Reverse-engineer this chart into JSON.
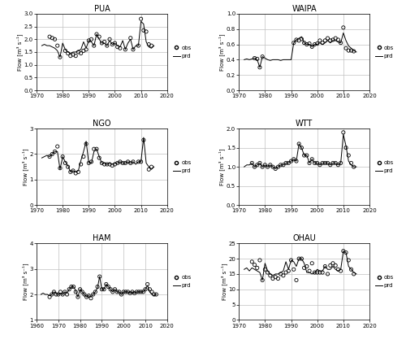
{
  "panels": [
    {
      "title": "PUA",
      "ylim": [
        0,
        3
      ],
      "yticks": [
        0,
        0.5,
        1,
        1.5,
        2,
        2.5,
        3
      ],
      "xlim": [
        1970,
        2020
      ],
      "xticks": [
        1970,
        1980,
        1990,
        2000,
        2010,
        2020
      ],
      "ylabel": "Flow [m³ s⁻¹]",
      "obs_years": [
        1975,
        1976,
        1977,
        1978,
        1979,
        1981,
        1982,
        1983,
        1984,
        1985,
        1986,
        1987,
        1988,
        1989,
        1990,
        1991,
        1992,
        1993,
        1994,
        1995,
        1996,
        1997,
        1998,
        1999,
        2000,
        2001,
        2002,
        2004,
        2006,
        2007,
        2009,
        2010,
        2011,
        2012,
        2013,
        2014
      ],
      "obs_vals": [
        2.1,
        2.05,
        2.0,
        1.75,
        1.3,
        1.55,
        1.45,
        1.35,
        1.4,
        1.35,
        1.5,
        1.45,
        1.55,
        1.6,
        1.95,
        2.0,
        1.75,
        2.2,
        2.1,
        1.85,
        1.9,
        1.75,
        2.0,
        1.8,
        1.85,
        1.7,
        1.65,
        1.6,
        2.05,
        1.6,
        1.75,
        2.8,
        2.35,
        2.3,
        1.8,
        1.75
      ],
      "prd_years": [
        1972,
        1973,
        1974,
        1975,
        1976,
        1977,
        1978,
        1979,
        1980,
        1981,
        1982,
        1983,
        1984,
        1985,
        1986,
        1987,
        1988,
        1989,
        1990,
        1991,
        1992,
        1993,
        1994,
        1995,
        1996,
        1997,
        1998,
        1999,
        2000,
        2001,
        2002,
        2003,
        2004,
        2005,
        2006,
        2007,
        2008,
        2009,
        2010,
        2011,
        2012,
        2013,
        2014,
        2015
      ],
      "prd_vals": [
        1.75,
        1.8,
        1.75,
        1.75,
        1.7,
        1.65,
        1.55,
        1.3,
        1.85,
        1.6,
        1.5,
        1.45,
        1.5,
        1.5,
        1.55,
        1.6,
        1.9,
        1.65,
        1.95,
        1.9,
        1.75,
        2.2,
        2.0,
        1.85,
        1.85,
        1.75,
        1.95,
        1.8,
        1.85,
        1.75,
        1.7,
        1.95,
        1.6,
        1.85,
        2.0,
        1.6,
        1.75,
        1.75,
        2.7,
        2.6,
        1.9,
        1.7,
        1.65,
        1.75
      ]
    },
    {
      "title": "WAIPA",
      "ylim": [
        0,
        1
      ],
      "yticks": [
        0,
        0.2,
        0.4,
        0.6,
        0.8,
        1.0
      ],
      "xlim": [
        1970,
        2020
      ],
      "xticks": [
        1970,
        1980,
        1990,
        2000,
        2010,
        2020
      ],
      "ylabel": "Flow [m³ s⁻¹]",
      "obs_years": [
        1976,
        1977,
        1978,
        1979,
        1991,
        1992,
        1993,
        1994,
        1995,
        1996,
        1997,
        1998,
        1999,
        2000,
        2001,
        2002,
        2003,
        2004,
        2005,
        2006,
        2007,
        2008,
        2009,
        2010,
        2011,
        2012,
        2013,
        2014
      ],
      "obs_vals": [
        0.42,
        0.41,
        0.3,
        0.44,
        0.62,
        0.66,
        0.65,
        0.67,
        0.62,
        0.6,
        0.61,
        0.57,
        0.6,
        0.61,
        0.65,
        0.62,
        0.65,
        0.68,
        0.65,
        0.66,
        0.68,
        0.66,
        0.62,
        0.82,
        0.55,
        0.52,
        0.52,
        0.51
      ],
      "prd_years": [
        1972,
        1973,
        1974,
        1975,
        1976,
        1977,
        1978,
        1979,
        1980,
        1981,
        1982,
        1983,
        1984,
        1985,
        1986,
        1987,
        1988,
        1989,
        1990,
        1991,
        1992,
        1993,
        1994,
        1995,
        1996,
        1997,
        1998,
        1999,
        2000,
        2001,
        2002,
        2003,
        2004,
        2005,
        2006,
        2007,
        2008,
        2009,
        2010,
        2011,
        2012,
        2013,
        2014,
        2015
      ],
      "prd_vals": [
        0.4,
        0.41,
        0.4,
        0.41,
        0.42,
        0.4,
        0.3,
        0.44,
        0.42,
        0.4,
        0.39,
        0.4,
        0.4,
        0.4,
        0.39,
        0.4,
        0.4,
        0.4,
        0.4,
        0.62,
        0.66,
        0.68,
        0.7,
        0.62,
        0.6,
        0.6,
        0.57,
        0.6,
        0.6,
        0.62,
        0.6,
        0.62,
        0.65,
        0.62,
        0.65,
        0.65,
        0.63,
        0.62,
        0.75,
        0.65,
        0.58,
        0.55,
        0.52,
        0.5
      ]
    },
    {
      "title": "NGO",
      "ylim": [
        0,
        3
      ],
      "yticks": [
        0,
        1,
        2,
        3
      ],
      "xlim": [
        1970,
        2020
      ],
      "xticks": [
        1970,
        1980,
        1990,
        2000,
        2010,
        2020
      ],
      "ylabel": "Flow [m³ s⁻¹]",
      "obs_years": [
        1975,
        1976,
        1977,
        1978,
        1979,
        1980,
        1981,
        1982,
        1983,
        1984,
        1985,
        1986,
        1987,
        1988,
        1989,
        1990,
        1991,
        1992,
        1993,
        1994,
        1995,
        1996,
        1997,
        1998,
        1999,
        2000,
        2001,
        2002,
        2003,
        2004,
        2005,
        2006,
        2007,
        2009,
        2010,
        2011,
        2013,
        2014
      ],
      "obs_vals": [
        1.9,
        2.0,
        2.1,
        2.3,
        1.45,
        1.9,
        1.65,
        1.5,
        1.3,
        1.35,
        1.25,
        1.3,
        1.6,
        1.9,
        2.4,
        1.65,
        1.7,
        2.2,
        2.2,
        1.85,
        1.65,
        1.6,
        1.6,
        1.6,
        1.55,
        1.6,
        1.65,
        1.7,
        1.65,
        1.65,
        1.7,
        1.65,
        1.7,
        1.7,
        1.7,
        2.55,
        1.4,
        1.5
      ],
      "prd_years": [
        1972,
        1973,
        1974,
        1975,
        1976,
        1977,
        1978,
        1979,
        1980,
        1981,
        1982,
        1983,
        1984,
        1985,
        1986,
        1987,
        1988,
        1989,
        1990,
        1991,
        1992,
        1993,
        1994,
        1995,
        1996,
        1997,
        1998,
        1999,
        2000,
        2001,
        2002,
        2003,
        2004,
        2005,
        2006,
        2007,
        2008,
        2009,
        2010,
        2011,
        2012,
        2013,
        2014,
        2015
      ],
      "prd_vals": [
        1.85,
        1.9,
        1.95,
        1.9,
        2.0,
        2.1,
        2.1,
        1.4,
        1.9,
        1.7,
        1.55,
        1.3,
        1.35,
        1.3,
        1.35,
        1.75,
        2.1,
        2.5,
        1.65,
        1.65,
        2.1,
        2.2,
        1.9,
        1.65,
        1.65,
        1.6,
        1.65,
        1.6,
        1.65,
        1.65,
        1.7,
        1.65,
        1.65,
        1.7,
        1.65,
        1.7,
        1.6,
        1.7,
        1.7,
        2.65,
        1.65,
        1.5,
        1.4,
        1.5
      ]
    },
    {
      "title": "WTT",
      "ylim": [
        0,
        2
      ],
      "yticks": [
        0,
        0.5,
        1.0,
        1.5,
        2.0
      ],
      "xlim": [
        1970,
        2020
      ],
      "xticks": [
        1970,
        1980,
        1990,
        2000,
        2010,
        2020
      ],
      "ylabel": "Flow [m³ s⁻¹]",
      "obs_years": [
        1975,
        1976,
        1977,
        1978,
        1979,
        1980,
        1981,
        1982,
        1983,
        1984,
        1985,
        1986,
        1987,
        1988,
        1989,
        1990,
        1991,
        1992,
        1993,
        1994,
        1995,
        1996,
        1997,
        1998,
        1999,
        2000,
        2001,
        2002,
        2003,
        2004,
        2005,
        2006,
        2007,
        2008,
        2009,
        2010,
        2011,
        2012,
        2013,
        2014
      ],
      "obs_vals": [
        1.1,
        1.0,
        1.05,
        1.1,
        1.0,
        1.05,
        1.0,
        1.05,
        1.0,
        0.95,
        1.0,
        1.05,
        1.05,
        1.1,
        1.1,
        1.15,
        1.2,
        1.15,
        1.6,
        1.5,
        1.3,
        1.3,
        1.1,
        1.2,
        1.1,
        1.1,
        1.05,
        1.1,
        1.1,
        1.1,
        1.05,
        1.1,
        1.1,
        1.05,
        1.1,
        1.9,
        1.5,
        1.3,
        1.1,
        1.0
      ],
      "prd_years": [
        1972,
        1973,
        1974,
        1975,
        1976,
        1977,
        1978,
        1979,
        1980,
        1981,
        1982,
        1983,
        1984,
        1985,
        1986,
        1987,
        1988,
        1989,
        1990,
        1991,
        1992,
        1993,
        1994,
        1995,
        1996,
        1997,
        1998,
        1999,
        2000,
        2001,
        2002,
        2003,
        2004,
        2005,
        2006,
        2007,
        2008,
        2009,
        2010,
        2011,
        2012,
        2013,
        2014,
        2015
      ],
      "prd_vals": [
        1.0,
        1.05,
        1.05,
        1.1,
        1.0,
        1.05,
        1.1,
        1.0,
        1.05,
        1.0,
        1.05,
        1.0,
        0.95,
        1.0,
        1.05,
        1.05,
        1.1,
        1.1,
        1.15,
        1.2,
        1.15,
        1.6,
        1.5,
        1.3,
        1.3,
        1.1,
        1.2,
        1.1,
        1.1,
        1.05,
        1.1,
        1.1,
        1.1,
        1.05,
        1.1,
        1.1,
        1.05,
        1.1,
        1.85,
        1.55,
        1.15,
        1.05,
        1.0,
        1.0
      ]
    },
    {
      "title": "HAM",
      "ylim": [
        1,
        4
      ],
      "yticks": [
        1,
        2,
        3,
        4
      ],
      "xlim": [
        1960,
        2020
      ],
      "xticks": [
        1960,
        1970,
        1980,
        1990,
        2000,
        2010,
        2020
      ],
      "ylabel": "Flow [m³ s⁻¹]",
      "obs_years": [
        1966,
        1967,
        1968,
        1969,
        1970,
        1971,
        1972,
        1973,
        1974,
        1975,
        1976,
        1977,
        1978,
        1979,
        1980,
        1981,
        1982,
        1983,
        1984,
        1985,
        1986,
        1987,
        1988,
        1989,
        1990,
        1991,
        1992,
        1993,
        1994,
        1995,
        1996,
        1997,
        1998,
        1999,
        2000,
        2001,
        2002,
        2003,
        2004,
        2005,
        2006,
        2007,
        2008,
        2009,
        2010,
        2011,
        2012,
        2013,
        2014,
        2015
      ],
      "obs_vals": [
        1.9,
        2.0,
        2.1,
        2.0,
        2.0,
        2.1,
        2.0,
        2.1,
        2.0,
        2.2,
        2.3,
        2.3,
        2.1,
        1.9,
        2.2,
        2.1,
        2.0,
        1.9,
        1.95,
        1.85,
        2.0,
        2.1,
        2.3,
        2.7,
        2.2,
        2.2,
        2.4,
        2.3,
        2.2,
        2.1,
        2.2,
        2.1,
        2.1,
        2.0,
        2.1,
        2.1,
        2.1,
        2.05,
        2.1,
        2.05,
        2.1,
        2.1,
        2.1,
        2.1,
        2.2,
        2.4,
        2.2,
        2.1,
        2.0,
        2.0
      ],
      "prd_years": [
        1962,
        1963,
        1964,
        1965,
        1966,
        1967,
        1968,
        1969,
        1970,
        1971,
        1972,
        1973,
        1974,
        1975,
        1976,
        1977,
        1978,
        1979,
        1980,
        1981,
        1982,
        1983,
        1984,
        1985,
        1986,
        1987,
        1988,
        1989,
        1990,
        1991,
        1992,
        1993,
        1994,
        1995,
        1996,
        1997,
        1998,
        1999,
        2000,
        2001,
        2002,
        2003,
        2004,
        2005,
        2006,
        2007,
        2008,
        2009,
        2010,
        2011,
        2012,
        2013,
        2014,
        2015
      ],
      "prd_vals": [
        2.0,
        2.05,
        2.0,
        2.0,
        1.95,
        2.0,
        2.1,
        2.05,
        2.0,
        2.05,
        2.0,
        2.1,
        2.05,
        2.2,
        2.3,
        2.3,
        2.15,
        1.9,
        2.2,
        2.1,
        2.0,
        1.9,
        1.95,
        1.9,
        2.0,
        2.1,
        2.25,
        2.7,
        2.2,
        2.2,
        2.4,
        2.3,
        2.2,
        2.1,
        2.2,
        2.1,
        2.1,
        2.0,
        2.1,
        2.1,
        2.1,
        2.05,
        2.1,
        2.05,
        2.1,
        2.1,
        2.1,
        2.1,
        2.2,
        2.35,
        2.1,
        2.0,
        1.95,
        2.0
      ]
    },
    {
      "title": "OHAU",
      "ylim": [
        0,
        25
      ],
      "yticks": [
        0,
        5,
        10,
        15,
        20,
        25
      ],
      "xlim": [
        1970,
        2020
      ],
      "xticks": [
        1970,
        1980,
        1990,
        2000,
        2010,
        2020
      ],
      "ylabel": "Flow [m³ s⁻¹]",
      "obs_years": [
        1975,
        1976,
        1977,
        1978,
        1979,
        1980,
        1981,
        1982,
        1983,
        1984,
        1985,
        1986,
        1987,
        1988,
        1989,
        1990,
        1991,
        1992,
        1993,
        1994,
        1995,
        1996,
        1997,
        1998,
        1999,
        2000,
        2001,
        2002,
        2003,
        2004,
        2005,
        2006,
        2007,
        2008,
        2009,
        2010,
        2011,
        2012,
        2013,
        2014
      ],
      "obs_vals": [
        19.0,
        18.0,
        17.0,
        19.5,
        13.0,
        16.5,
        15.5,
        14.5,
        13.5,
        14.0,
        13.5,
        15.0,
        14.5,
        15.5,
        16.0,
        19.5,
        16.5,
        13.0,
        20.0,
        20.0,
        17.0,
        17.5,
        16.0,
        18.5,
        15.5,
        15.5,
        15.5,
        15.5,
        17.5,
        15.0,
        17.8,
        18.5,
        17.8,
        16.5,
        16.0,
        22.5,
        22.0,
        19.5,
        16.5,
        15.0
      ],
      "prd_years": [
        1972,
        1973,
        1974,
        1975,
        1976,
        1977,
        1978,
        1979,
        1980,
        1981,
        1982,
        1983,
        1984,
        1985,
        1986,
        1987,
        1988,
        1989,
        1990,
        1991,
        1992,
        1993,
        1994,
        1995,
        1996,
        1997,
        1998,
        1999,
        2000,
        2001,
        2002,
        2003,
        2004,
        2005,
        2006,
        2007,
        2008,
        2009,
        2010,
        2011,
        2012,
        2013,
        2014,
        2015
      ],
      "prd_vals": [
        16.5,
        17.0,
        16.0,
        17.0,
        16.5,
        16.0,
        15.5,
        13.0,
        18.5,
        16.0,
        15.0,
        14.5,
        15.0,
        15.0,
        15.5,
        16.0,
        19.0,
        16.5,
        19.5,
        19.0,
        17.5,
        20.0,
        20.0,
        18.5,
        15.5,
        15.5,
        15.0,
        15.5,
        16.5,
        16.0,
        16.0,
        17.5,
        16.5,
        16.5,
        17.5,
        16.5,
        16.0,
        16.5,
        22.5,
        22.0,
        17.5,
        16.5,
        15.5,
        15.0
      ]
    }
  ],
  "bg_color": "#ffffff",
  "grid_color": "#c0c0c0",
  "grid_linewidth": 0.5,
  "obs_marker": "o",
  "obs_color": "black",
  "obs_markersize": 3,
  "prd_color": "black",
  "prd_linewidth": 0.7
}
